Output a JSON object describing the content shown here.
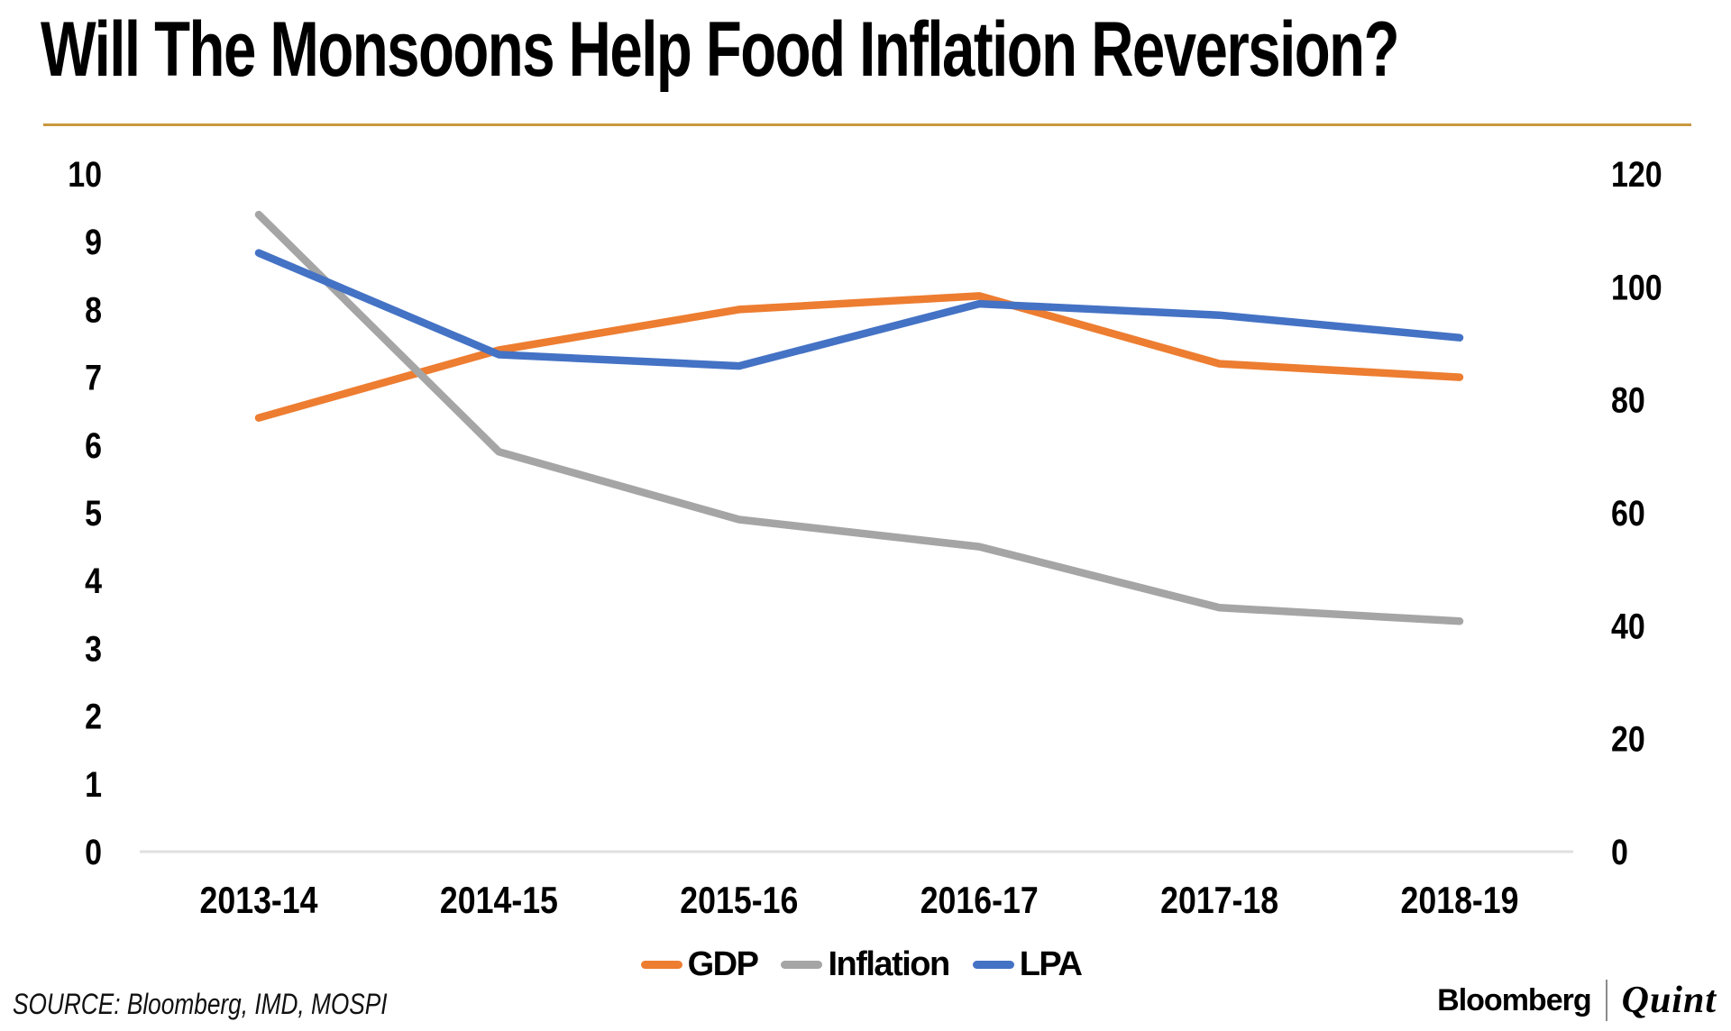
{
  "title": "Will The Monsoons Help Food Inflation Reversion?",
  "source": "SOURCE: Bloomberg, IMD, MOSPI",
  "branding": {
    "primary": "Bloomberg",
    "secondary": "Quint"
  },
  "colors": {
    "gdp": "#ED7D31",
    "inflation": "#A5A5A5",
    "lpa": "#4472C4",
    "gold_rule": "#C9983E",
    "axis_line": "#E0E0E0",
    "text": "#000000"
  },
  "chart_data": {
    "type": "line",
    "categories": [
      "2013-14",
      "2014-15",
      "2015-16",
      "2016-17",
      "2017-18",
      "2018-19"
    ],
    "series": [
      {
        "name": "GDP",
        "axis": "left",
        "color_key": "gdp",
        "values": [
          6.4,
          7.4,
          8.0,
          8.2,
          7.2,
          7.0
        ]
      },
      {
        "name": "Inflation",
        "axis": "left",
        "color_key": "inflation",
        "values": [
          9.4,
          5.9,
          4.9,
          4.5,
          3.6,
          3.4
        ]
      },
      {
        "name": "LPA",
        "axis": "right",
        "color_key": "lpa",
        "values": [
          106,
          88,
          86,
          97,
          95,
          91
        ]
      }
    ],
    "left_axis": {
      "min": 0,
      "max": 10,
      "ticks": [
        0,
        1,
        2,
        3,
        4,
        5,
        6,
        7,
        8,
        9,
        10
      ]
    },
    "right_axis": {
      "min": 0,
      "max": 120,
      "ticks": [
        0,
        20,
        40,
        60,
        80,
        100,
        120
      ]
    },
    "grid": false,
    "legend_position": "bottom"
  }
}
